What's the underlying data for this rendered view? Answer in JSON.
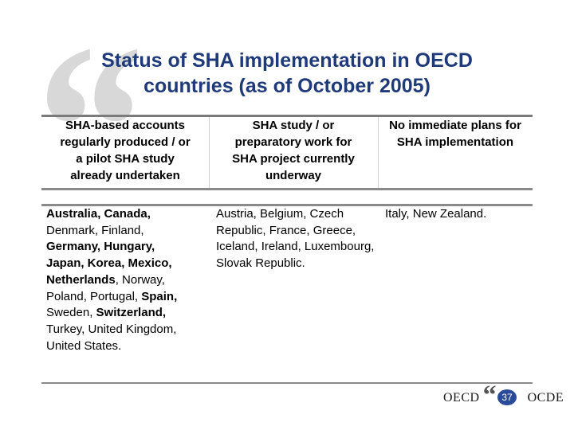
{
  "slide": {
    "title_line1": "Status of SHA implementation in OECD",
    "title_line2": "countries (as of October 2005)"
  },
  "table": {
    "headers": [
      "SHA-based accounts\nregularly produced / or\na pilot SHA study\nalready undertaken",
      "SHA study / or\npreparatory work for\nSHA project currently\nunderway",
      "No immediate plans for\nSHA implementation"
    ],
    "col1": [
      {
        "text": "Australia, Canada,",
        "bold": true
      },
      {
        "text": "Denmark, Finland,",
        "bold": false
      },
      {
        "text": "Germany, Hungary,",
        "bold": true
      },
      {
        "text": "Japan, Korea, Mexico,",
        "bold": true
      },
      {
        "text": "Netherlands",
        "bold": true
      },
      {
        "text": ", Norway,",
        "bold": false
      },
      {
        "text": "Poland, Portugal, ",
        "bold": false
      },
      {
        "text": "Spain,",
        "bold": true
      },
      {
        "text": "Sweden, ",
        "bold": false
      },
      {
        "text": "Switzerland,",
        "bold": true
      },
      {
        "text": "Turkey, United Kingdom,",
        "bold": false
      },
      {
        "text": "United States.",
        "bold": false
      }
    ],
    "col2": "Austria, Belgium, Czech Republic, France, Greece, Iceland, Ireland, Luxembourg, Slovak Republic.",
    "col3": "Italy, New Zealand."
  },
  "footer": {
    "left_text": "OECD",
    "right_text": "OCDE",
    "page_number": "37"
  },
  "colors": {
    "title": "#1f3a7a",
    "badge": "#2a4a9a",
    "rule": "#8a8a8a"
  },
  "icons": {
    "background": "large-quote-mark-icon",
    "logo": "oecd-logo-icon"
  }
}
